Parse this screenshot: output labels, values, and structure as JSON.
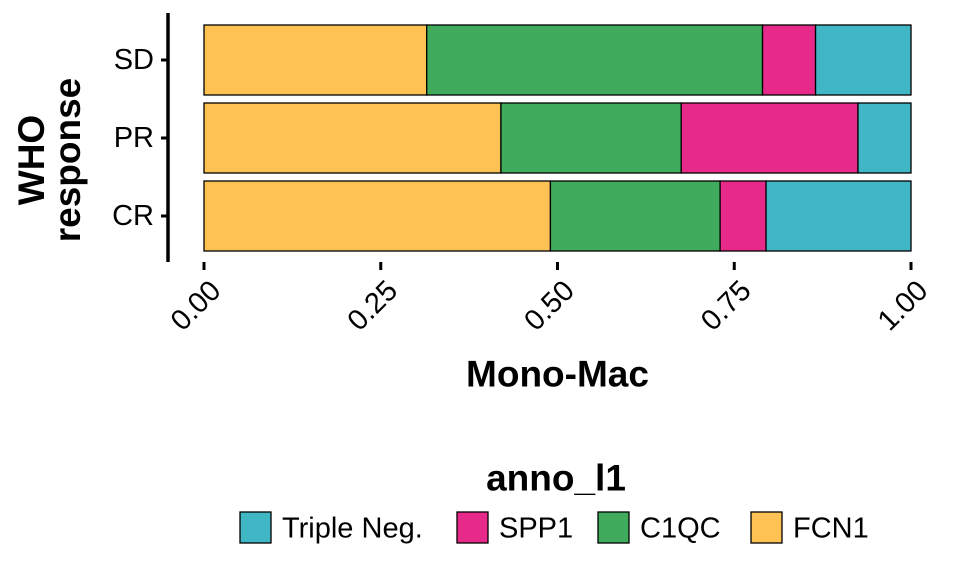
{
  "chart_data": {
    "type": "bar",
    "orientation": "horizontal",
    "stacked": true,
    "categories": [
      "SD",
      "PR",
      "CR"
    ],
    "series": [
      {
        "name": "FCN1",
        "color": "#FEC254",
        "values": [
          0.315,
          0.42,
          0.49
        ]
      },
      {
        "name": "C1QC",
        "color": "#41AB5D",
        "values": [
          0.475,
          0.255,
          0.24
        ]
      },
      {
        "name": "SPP1",
        "color": "#E7298A",
        "values": [
          0.075,
          0.25,
          0.065
        ]
      },
      {
        "name": "Triple Neg.",
        "color": "#41B6C4",
        "values": [
          0.135,
          0.075,
          0.205
        ]
      }
    ],
    "xlabel": "Mono-Mac",
    "ylabel_lines": [
      "WHO",
      "response"
    ],
    "xlim": [
      0,
      1
    ],
    "xticks": [
      0,
      0.25,
      0.5,
      0.75,
      1
    ],
    "xtick_labels": [
      "0.00",
      "0.25",
      "0.50",
      "0.75",
      "1.00"
    ],
    "grid": false,
    "legend": {
      "title": "anno_l1",
      "position": "bottom",
      "order": [
        "Triple Neg.",
        "SPP1",
        "C1QC",
        "FCN1"
      ]
    }
  }
}
